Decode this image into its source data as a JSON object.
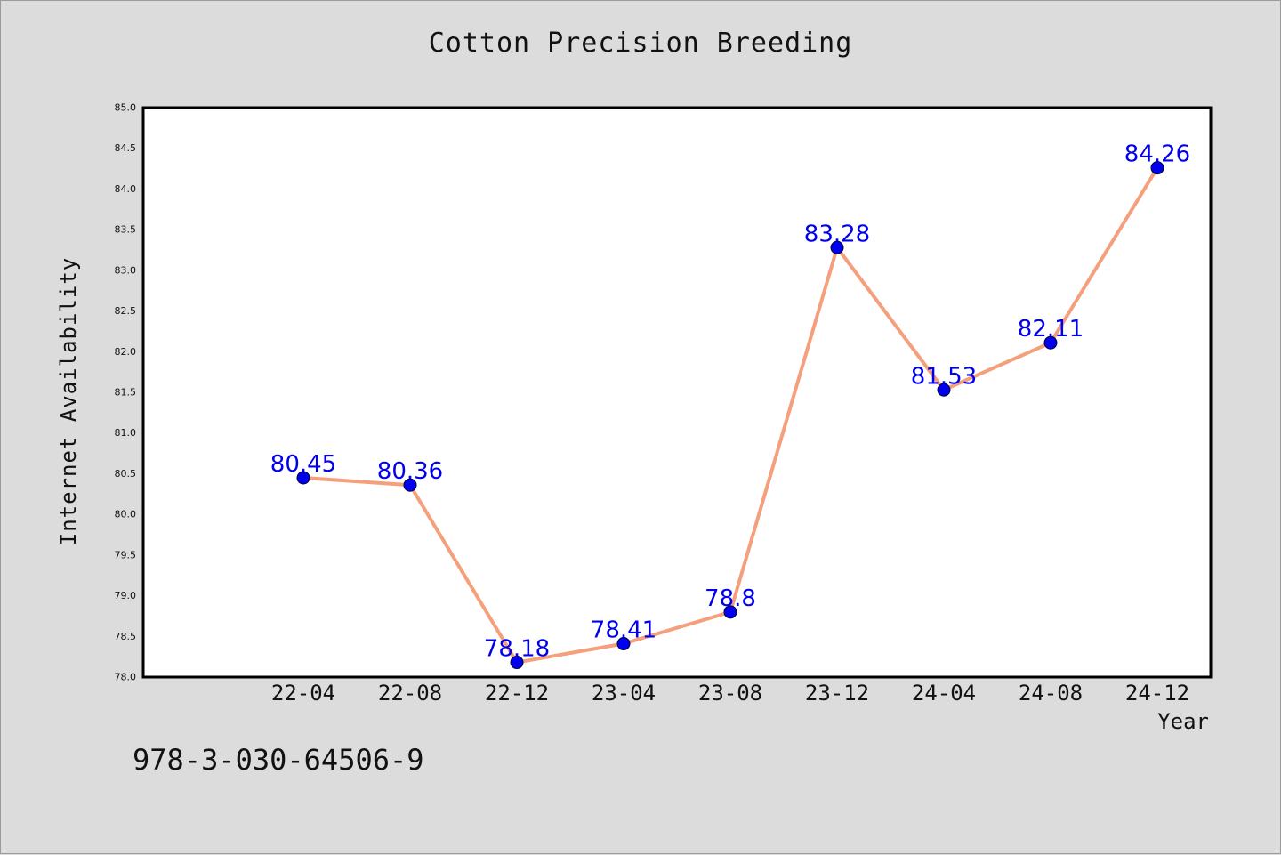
{
  "chart_data": {
    "type": "line",
    "title": "Cotton Precision Breeding",
    "xlabel": "Year",
    "ylabel": "Internet Availability",
    "categories": [
      "22-04",
      "22-08",
      "22-12",
      "23-04",
      "23-08",
      "23-12",
      "24-04",
      "24-08",
      "24-12"
    ],
    "series": [
      {
        "values": [
          80.45,
          80.36,
          78.18,
          78.41,
          78.8,
          83.28,
          81.53,
          82.11,
          84.26
        ],
        "labels": [
          "80.45",
          "80.36",
          "78.18",
          "78.41",
          "78.8",
          "83.28",
          "81.53",
          "82.11",
          "84.26"
        ],
        "line_color": "#f4a07c",
        "marker_color": "#0000ee",
        "label_color": "#0000ee"
      }
    ],
    "ylim": [
      78.0,
      85.0
    ],
    "yticks": [
      "78.0",
      "78.5",
      "79.0",
      "79.5",
      "80.0",
      "80.5",
      "81.0",
      "81.5",
      "82.0",
      "82.5",
      "83.0",
      "83.5",
      "84.0",
      "84.5",
      "85.0"
    ],
    "grid": false,
    "legend": "none"
  },
  "footer": {
    "code": "978-3-030-64506-9"
  }
}
